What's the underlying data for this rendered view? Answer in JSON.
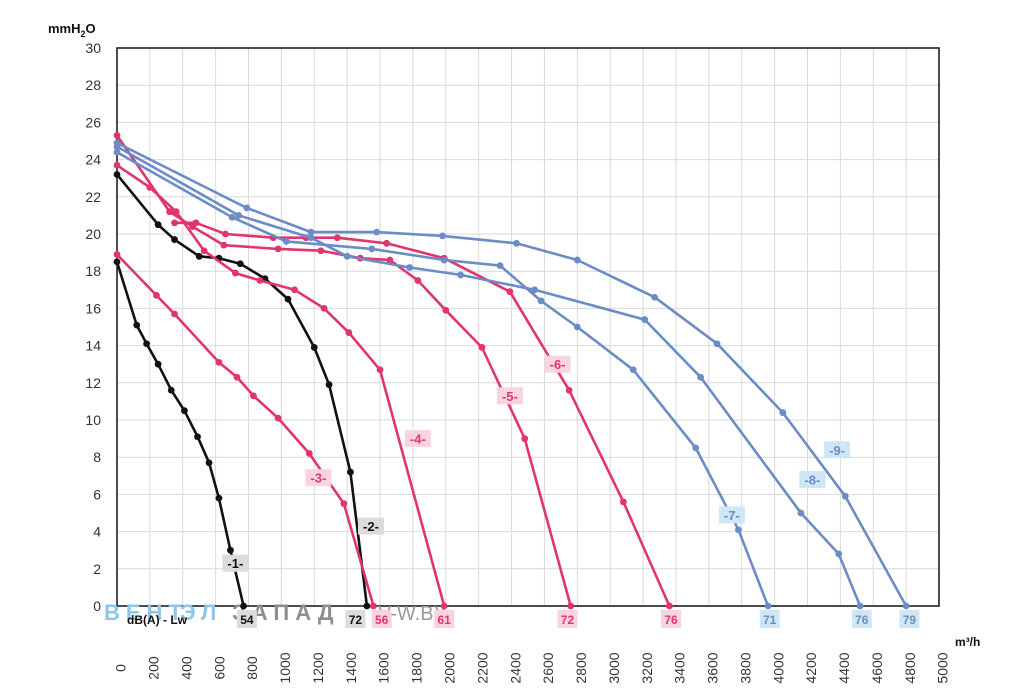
{
  "chart_data": {
    "type": "line",
    "ylabel_main": "mmH",
    "ylabel_sub": "2",
    "ylabel_end": "O",
    "xlabel": "m³/h",
    "noise_label": "dB(A) - Lw",
    "watermark": {
      "part1": "ВЕНТ",
      "part2": "ЭЛ",
      "part3": "ЗАПАД",
      "part4": "V-W.BY"
    },
    "xlim": [
      0,
      5000
    ],
    "ylim": [
      0,
      30
    ],
    "x_ticks": [
      0,
      200,
      400,
      600,
      800,
      1000,
      1200,
      1400,
      1600,
      1800,
      2000,
      2200,
      2400,
      2600,
      2800,
      3000,
      3200,
      3400,
      3600,
      3800,
      4000,
      4200,
      4400,
      4600,
      4800,
      5000
    ],
    "y_ticks": [
      0,
      2,
      4,
      6,
      8,
      10,
      12,
      14,
      16,
      18,
      20,
      22,
      24,
      26,
      28,
      30
    ],
    "grid": true,
    "colors": {
      "black": "#111111",
      "pink": "#e0356f",
      "blue": "#6b8cc7",
      "black_tag": "#dcdcdc",
      "pink_tag": "#f9d3df",
      "blue_tag": "#cfe6f5",
      "grid": "#d9d9d9"
    },
    "series": [
      {
        "name": "-1-",
        "color": "black",
        "label_at": [
          720,
          2.3
        ],
        "end_label": "54",
        "end_x": 790,
        "points": [
          [
            0,
            18.5
          ],
          [
            120,
            15.1
          ],
          [
            180,
            14.1
          ],
          [
            250,
            13.0
          ],
          [
            330,
            11.6
          ],
          [
            410,
            10.5
          ],
          [
            490,
            9.1
          ],
          [
            560,
            7.7
          ],
          [
            620,
            5.8
          ],
          [
            690,
            3.0
          ],
          [
            770,
            0
          ]
        ]
      },
      {
        "name": "-2-",
        "color": "black",
        "label_at": [
          1545,
          4.3
        ],
        "end_label": "72",
        "end_x": 1450,
        "points": [
          [
            0,
            23.2
          ],
          [
            250,
            20.5
          ],
          [
            350,
            19.7
          ],
          [
            500,
            18.8
          ],
          [
            620,
            18.7
          ],
          [
            750,
            18.4
          ],
          [
            900,
            17.6
          ],
          [
            1040,
            16.5
          ],
          [
            1200,
            13.9
          ],
          [
            1290,
            11.9
          ],
          [
            1420,
            7.2
          ],
          [
            1520,
            0
          ]
        ]
      },
      {
        "name": "-3-",
        "color": "pink",
        "label_at": [
          1225,
          6.9
        ],
        "end_label": "56",
        "end_x": 1610,
        "points": [
          [
            0,
            18.9
          ],
          [
            240,
            16.7
          ],
          [
            350,
            15.7
          ],
          [
            620,
            13.1
          ],
          [
            730,
            12.3
          ],
          [
            830,
            11.3
          ],
          [
            980,
            10.1
          ],
          [
            1170,
            8.2
          ],
          [
            1380,
            5.5
          ],
          [
            1560,
            0
          ]
        ]
      },
      {
        "name": "-4-",
        "color": "pink",
        "label_at": [
          1830,
          9.0
        ],
        "end_label": "61",
        "end_x": 1990,
        "points": [
          [
            0,
            23.7
          ],
          [
            200,
            22.5
          ],
          [
            360,
            21.2
          ],
          [
            530,
            19.1
          ],
          [
            720,
            17.9
          ],
          [
            870,
            17.5
          ],
          [
            1080,
            17.0
          ],
          [
            1260,
            16.0
          ],
          [
            1410,
            14.7
          ],
          [
            1600,
            12.7
          ],
          [
            1990,
            0
          ]
        ]
      },
      {
        "name": "-5-",
        "color": "pink",
        "label_at": [
          2390,
          11.3
        ],
        "end_label": "72",
        "end_x": 2740,
        "points": [
          [
            0,
            25.3
          ],
          [
            320,
            21.2
          ],
          [
            460,
            20.4
          ],
          [
            650,
            19.4
          ],
          [
            980,
            19.2
          ],
          [
            1240,
            19.1
          ],
          [
            1480,
            18.7
          ],
          [
            1660,
            18.6
          ],
          [
            1830,
            17.5
          ],
          [
            2000,
            15.9
          ],
          [
            2220,
            13.9
          ],
          [
            2480,
            9.0
          ],
          [
            2760,
            0
          ]
        ]
      },
      {
        "name": "-6-",
        "color": "pink",
        "label_at": [
          2680,
          13.0
        ],
        "end_label": "76",
        "end_x": 3370,
        "points": [
          [
            350,
            20.6
          ],
          [
            480,
            20.6
          ],
          [
            660,
            20.0
          ],
          [
            950,
            19.8
          ],
          [
            1150,
            19.8
          ],
          [
            1340,
            19.8
          ],
          [
            1640,
            19.5
          ],
          [
            1990,
            18.7
          ],
          [
            2390,
            16.9
          ],
          [
            2750,
            11.6
          ],
          [
            3080,
            5.6
          ],
          [
            3360,
            0
          ]
        ]
      },
      {
        "name": "-7-",
        "color": "blue",
        "label_at": [
          3740,
          4.9
        ],
        "end_label": "71",
        "end_x": 3970,
        "points": [
          [
            0,
            24.4
          ],
          [
            700,
            20.9
          ],
          [
            1030,
            19.6
          ],
          [
            1550,
            19.2
          ],
          [
            1990,
            18.6
          ],
          [
            2330,
            18.3
          ],
          [
            2580,
            16.4
          ],
          [
            2800,
            15.0
          ],
          [
            3140,
            12.7
          ],
          [
            3520,
            8.5
          ],
          [
            3780,
            4.1
          ],
          [
            3960,
            0
          ]
        ]
      },
      {
        "name": "-8-",
        "color": "blue",
        "label_at": [
          4230,
          6.8
        ],
        "end_label": "76",
        "end_x": 4530,
        "points": [
          [
            0,
            24.7
          ],
          [
            740,
            21.0
          ],
          [
            1180,
            19.8
          ],
          [
            1400,
            18.8
          ],
          [
            1780,
            18.2
          ],
          [
            2090,
            17.8
          ],
          [
            2540,
            17.0
          ],
          [
            3210,
            15.4
          ],
          [
            3550,
            12.3
          ],
          [
            4160,
            5.0
          ],
          [
            4390,
            2.8
          ],
          [
            4520,
            0
          ]
        ]
      },
      {
        "name": "-9-",
        "color": "blue",
        "label_at": [
          4380,
          8.4
        ],
        "end_label": "79",
        "end_x": 4820,
        "points": [
          [
            0,
            24.9
          ],
          [
            790,
            21.4
          ],
          [
            1180,
            20.1
          ],
          [
            1580,
            20.1
          ],
          [
            1980,
            19.9
          ],
          [
            2430,
            19.5
          ],
          [
            2800,
            18.6
          ],
          [
            3270,
            16.6
          ],
          [
            3650,
            14.1
          ],
          [
            4050,
            10.4
          ],
          [
            4430,
            5.9
          ],
          [
            4800,
            0
          ]
        ]
      }
    ]
  }
}
